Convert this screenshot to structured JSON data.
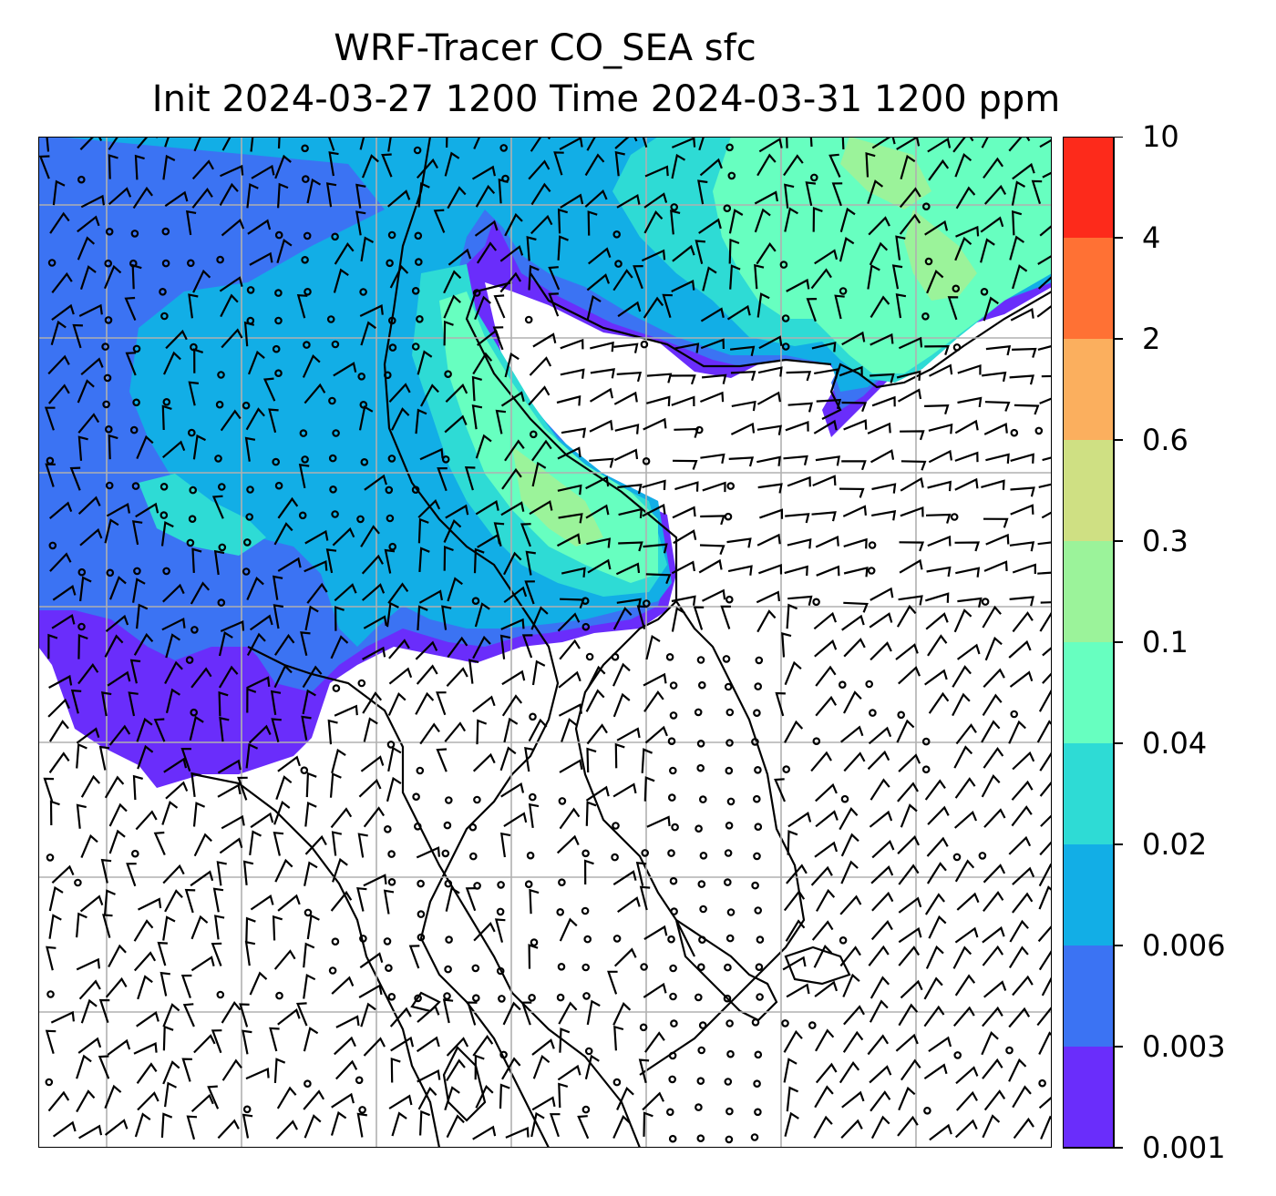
{
  "title": {
    "line1": "WRF-Tracer CO_SEA sfc",
    "line2": "Init 2024-03-27 1200 Time 2024-03-31 1200 ppm"
  },
  "colorbar": {
    "levels": [
      "0.001",
      "0.003",
      "0.006",
      "0.02",
      "0.04",
      "0.1",
      "0.3",
      "0.6",
      "2",
      "4",
      "10"
    ],
    "colors": [
      "#6a2dfb",
      "#3b73f3",
      "#12aee6",
      "#2edbd5",
      "#67ffc0",
      "#9bf39a",
      "#cfe083",
      "#fbaf5e",
      "#ff7134",
      "#fd2a1b"
    ]
  },
  "map": {
    "field_colors": {
      "purple": "#6a2dfb",
      "blue": "#3b73f3",
      "cyan": "#12aee6",
      "teal": "#2edbd5",
      "mint": "#67ffc0",
      "green": "#9bf39a"
    },
    "gridline_color": "#b0b0b0"
  }
}
